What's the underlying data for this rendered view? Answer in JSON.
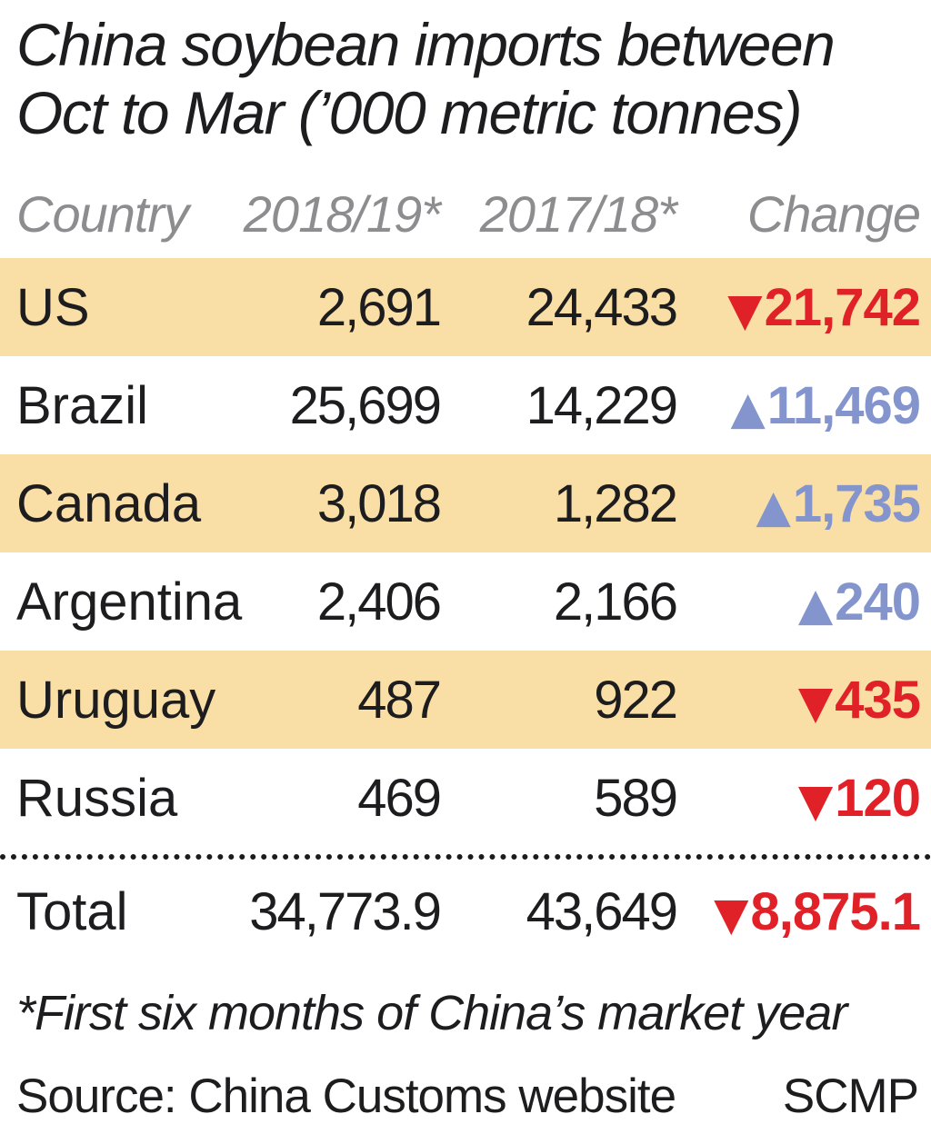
{
  "title": {
    "line1": "China soybean imports between",
    "line2": "Oct to Mar (’000 metric tonnes)"
  },
  "table": {
    "columns": [
      "Country",
      "2018/19*",
      "2017/18*",
      "Change"
    ],
    "rows": [
      {
        "country": "US",
        "y2018_19": "2,691",
        "y2017_18": "24,433",
        "change": "21,742",
        "direction": "down",
        "highlight": true
      },
      {
        "country": "Brazil",
        "y2018_19": "25,699",
        "y2017_18": "14,229",
        "change": "11,469",
        "direction": "up",
        "highlight": false
      },
      {
        "country": "Canada",
        "y2018_19": "3,018",
        "y2017_18": "1,282",
        "change": "1,735",
        "direction": "up",
        "highlight": true
      },
      {
        "country": "Argentina",
        "y2018_19": "2,406",
        "y2017_18": "2,166",
        "change": "240",
        "direction": "up",
        "highlight": false
      },
      {
        "country": "Uruguay",
        "y2018_19": "487",
        "y2017_18": "922",
        "change": "435",
        "direction": "down",
        "highlight": true
      },
      {
        "country": "Russia",
        "y2018_19": "469",
        "y2017_18": "589",
        "change": "120",
        "direction": "down",
        "highlight": false
      }
    ],
    "total": {
      "country": "Total",
      "y2018_19": "34,773.9",
      "y2017_18": "43,649",
      "change": "8,875.1",
      "direction": "down",
      "highlight": false
    }
  },
  "icons": {
    "up": "▲",
    "down": "▼"
  },
  "colors": {
    "highlight_row": "#f9dfa5",
    "decrease": "#e02127",
    "increase": "#8495cd",
    "header_text": "#8d8d90",
    "body_text": "#1d1d1f"
  },
  "footnote": "*First six months of China’s market year",
  "source": "Source: China Customs website",
  "credit": "SCMP",
  "chart_data": {
    "type": "table",
    "title": "China soybean imports between Oct to Mar ('000 metric tonnes)",
    "columns": [
      "Country",
      "2018/19*",
      "2017/18*",
      "Change"
    ],
    "rows": [
      [
        "US",
        2691,
        24433,
        -21742
      ],
      [
        "Brazil",
        25699,
        14229,
        11469
      ],
      [
        "Canada",
        3018,
        1282,
        1735
      ],
      [
        "Argentina",
        2406,
        2166,
        240
      ],
      [
        "Uruguay",
        487,
        922,
        -435
      ],
      [
        "Russia",
        469,
        589,
        -120
      ],
      [
        "Total",
        34773.9,
        43649,
        -8875.1
      ]
    ],
    "footnote": "*First six months of China's market year",
    "source": "Source: China Customs website",
    "credit": "SCMP",
    "layout": "highlighted rows alternate tan; decreases red with down-triangle; increases blue with up-triangle"
  }
}
